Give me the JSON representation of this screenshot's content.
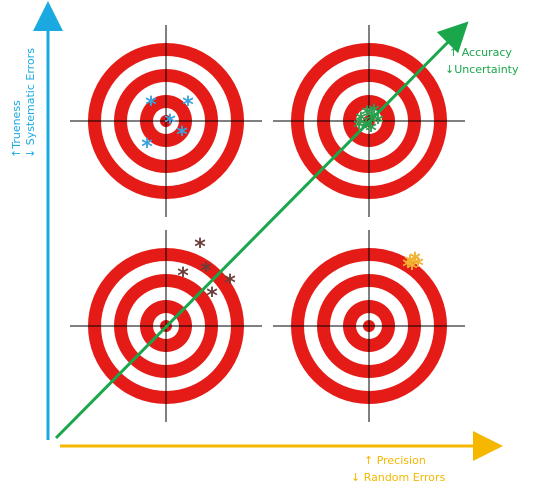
{
  "axes": {
    "vertical": {
      "line1": "↑Trueness",
      "line2": "↓ Systematic Errors",
      "color": "#1aa9e1"
    },
    "horizontal": {
      "line1": "↑ Precision",
      "line2": "↓ Random Errors",
      "color": "#f5b700"
    },
    "diagonal": {
      "line1": "↑ Accuracy",
      "line2": "↓Uncertainty",
      "color": "#1aa64b"
    }
  },
  "targets": {
    "ring_color": "#e41b17",
    "background_color": "#ffffff",
    "crosshair_color": "#000000",
    "marker_glyph": "*",
    "items": [
      {
        "name": "high-trueness-low-precision",
        "marker_color": "#39a3dc"
      },
      {
        "name": "high-trueness-high-precision",
        "marker_color": "#2f9d4e"
      },
      {
        "name": "low-trueness-low-precision",
        "marker_color": "#6b3e3a"
      },
      {
        "name": "low-trueness-high-precision",
        "marker_color": "#f2b230"
      }
    ]
  }
}
